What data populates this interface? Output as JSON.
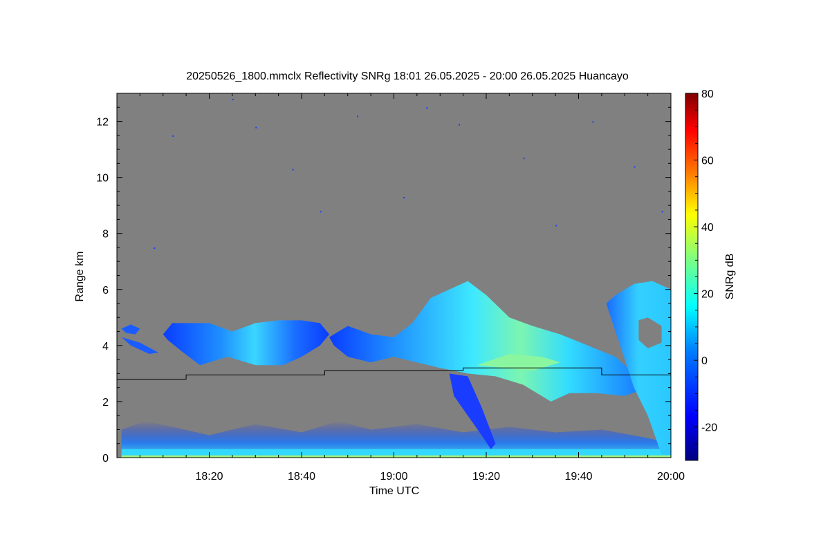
{
  "chart_data": {
    "type": "heatmap",
    "title": "20250526_1800.mmclx Reflectivity SNRg   18:01 26.05.2025 - 20:00 26.05.2025 Huancayo",
    "xlabel": "Time UTC",
    "ylabel": "Range km",
    "colorbar_label": "SNRg dB",
    "x_range": [
      "18:00",
      "20:00"
    ],
    "x_ticks": [
      "18:20",
      "18:40",
      "19:00",
      "19:20",
      "19:40",
      "20:00"
    ],
    "ylim": [
      0,
      13
    ],
    "y_ticks": [
      0,
      2,
      4,
      6,
      8,
      10,
      12
    ],
    "colorbar_range": [
      -30,
      80
    ],
    "colorbar_ticks": [
      -20,
      0,
      20,
      40,
      60,
      80
    ],
    "background_color": "#808080",
    "colormap": [
      "#00007f",
      "#0000ff",
      "#007fff",
      "#00ffff",
      "#7fff7f",
      "#ffff00",
      "#ff7f00",
      "#ff0000",
      "#7f0000"
    ],
    "cloud_layers": [
      {
        "name": "mid-level cloud",
        "t_start": "18:01",
        "t_end": "18:45",
        "base_km": 3.2,
        "top_km": 5.0,
        "snr_db_range": [
          -25,
          5
        ]
      },
      {
        "name": "main cloud",
        "t_start": "18:45",
        "t_end": "19:55",
        "base_km": 2.2,
        "top_km": 6.3,
        "snr_db_range": [
          -25,
          20
        ]
      },
      {
        "name": "precipitation fall streak",
        "t_start": "19:12",
        "t_end": "19:22",
        "base_km": 0.3,
        "top_km": 3.0,
        "snr_db_range": [
          -25,
          -10
        ]
      },
      {
        "name": "deep cloud",
        "t_start": "19:46",
        "t_end": "20:00",
        "base_km": 0.1,
        "top_km": 6.3,
        "snr_db_range": [
          -20,
          25
        ]
      },
      {
        "name": "boundary layer clutter",
        "t_start": "18:01",
        "t_end": "20:00",
        "base_km": 0.0,
        "top_km": 1.3,
        "snr_db_range": [
          -25,
          15
        ]
      }
    ],
    "threshold_line": {
      "color": "#000000",
      "points": [
        [
          "18:00",
          2.8
        ],
        [
          "18:15",
          2.8
        ],
        [
          "18:15",
          2.95
        ],
        [
          "18:45",
          2.95
        ],
        [
          "18:45",
          3.1
        ],
        [
          "19:15",
          3.1
        ],
        [
          "19:15",
          3.2
        ],
        [
          "19:45",
          3.2
        ],
        [
          "19:45",
          2.95
        ],
        [
          "20:00",
          2.95
        ]
      ]
    }
  }
}
